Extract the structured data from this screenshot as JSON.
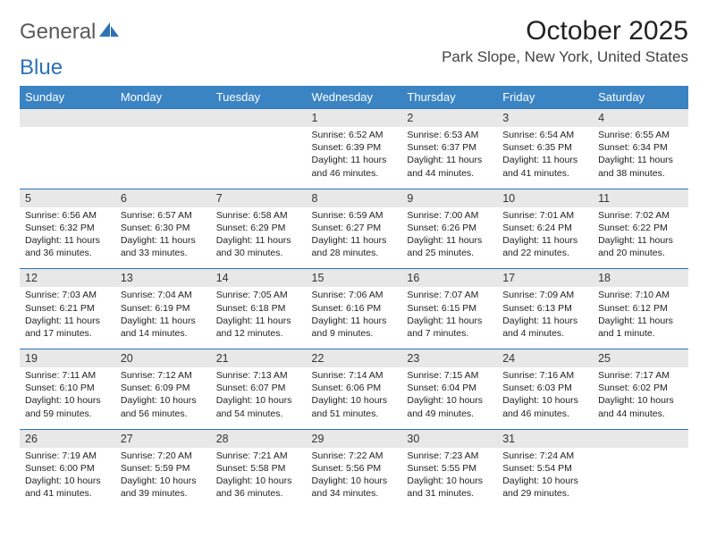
{
  "logo": {
    "text1": "General",
    "text2": "Blue"
  },
  "title": "October 2025",
  "location": "Park Slope, New York, United States",
  "colors": {
    "header_bg": "#3b84c4",
    "header_text": "#ffffff",
    "rule": "#2e72b6",
    "daynum_bg": "#e8e8e8"
  },
  "weekdays": [
    "Sunday",
    "Monday",
    "Tuesday",
    "Wednesday",
    "Thursday",
    "Friday",
    "Saturday"
  ],
  "weeks": [
    {
      "nums": [
        "",
        "",
        "",
        "1",
        "2",
        "3",
        "4"
      ],
      "details": [
        null,
        null,
        null,
        {
          "sr": "Sunrise: 6:52 AM",
          "ss": "Sunset: 6:39 PM",
          "d1": "Daylight: 11 hours",
          "d2": "and 46 minutes."
        },
        {
          "sr": "Sunrise: 6:53 AM",
          "ss": "Sunset: 6:37 PM",
          "d1": "Daylight: 11 hours",
          "d2": "and 44 minutes."
        },
        {
          "sr": "Sunrise: 6:54 AM",
          "ss": "Sunset: 6:35 PM",
          "d1": "Daylight: 11 hours",
          "d2": "and 41 minutes."
        },
        {
          "sr": "Sunrise: 6:55 AM",
          "ss": "Sunset: 6:34 PM",
          "d1": "Daylight: 11 hours",
          "d2": "and 38 minutes."
        }
      ]
    },
    {
      "nums": [
        "5",
        "6",
        "7",
        "8",
        "9",
        "10",
        "11"
      ],
      "details": [
        {
          "sr": "Sunrise: 6:56 AM",
          "ss": "Sunset: 6:32 PM",
          "d1": "Daylight: 11 hours",
          "d2": "and 36 minutes."
        },
        {
          "sr": "Sunrise: 6:57 AM",
          "ss": "Sunset: 6:30 PM",
          "d1": "Daylight: 11 hours",
          "d2": "and 33 minutes."
        },
        {
          "sr": "Sunrise: 6:58 AM",
          "ss": "Sunset: 6:29 PM",
          "d1": "Daylight: 11 hours",
          "d2": "and 30 minutes."
        },
        {
          "sr": "Sunrise: 6:59 AM",
          "ss": "Sunset: 6:27 PM",
          "d1": "Daylight: 11 hours",
          "d2": "and 28 minutes."
        },
        {
          "sr": "Sunrise: 7:00 AM",
          "ss": "Sunset: 6:26 PM",
          "d1": "Daylight: 11 hours",
          "d2": "and 25 minutes."
        },
        {
          "sr": "Sunrise: 7:01 AM",
          "ss": "Sunset: 6:24 PM",
          "d1": "Daylight: 11 hours",
          "d2": "and 22 minutes."
        },
        {
          "sr": "Sunrise: 7:02 AM",
          "ss": "Sunset: 6:22 PM",
          "d1": "Daylight: 11 hours",
          "d2": "and 20 minutes."
        }
      ]
    },
    {
      "nums": [
        "12",
        "13",
        "14",
        "15",
        "16",
        "17",
        "18"
      ],
      "details": [
        {
          "sr": "Sunrise: 7:03 AM",
          "ss": "Sunset: 6:21 PM",
          "d1": "Daylight: 11 hours",
          "d2": "and 17 minutes."
        },
        {
          "sr": "Sunrise: 7:04 AM",
          "ss": "Sunset: 6:19 PM",
          "d1": "Daylight: 11 hours",
          "d2": "and 14 minutes."
        },
        {
          "sr": "Sunrise: 7:05 AM",
          "ss": "Sunset: 6:18 PM",
          "d1": "Daylight: 11 hours",
          "d2": "and 12 minutes."
        },
        {
          "sr": "Sunrise: 7:06 AM",
          "ss": "Sunset: 6:16 PM",
          "d1": "Daylight: 11 hours",
          "d2": "and 9 minutes."
        },
        {
          "sr": "Sunrise: 7:07 AM",
          "ss": "Sunset: 6:15 PM",
          "d1": "Daylight: 11 hours",
          "d2": "and 7 minutes."
        },
        {
          "sr": "Sunrise: 7:09 AM",
          "ss": "Sunset: 6:13 PM",
          "d1": "Daylight: 11 hours",
          "d2": "and 4 minutes."
        },
        {
          "sr": "Sunrise: 7:10 AM",
          "ss": "Sunset: 6:12 PM",
          "d1": "Daylight: 11 hours",
          "d2": "and 1 minute."
        }
      ]
    },
    {
      "nums": [
        "19",
        "20",
        "21",
        "22",
        "23",
        "24",
        "25"
      ],
      "details": [
        {
          "sr": "Sunrise: 7:11 AM",
          "ss": "Sunset: 6:10 PM",
          "d1": "Daylight: 10 hours",
          "d2": "and 59 minutes."
        },
        {
          "sr": "Sunrise: 7:12 AM",
          "ss": "Sunset: 6:09 PM",
          "d1": "Daylight: 10 hours",
          "d2": "and 56 minutes."
        },
        {
          "sr": "Sunrise: 7:13 AM",
          "ss": "Sunset: 6:07 PM",
          "d1": "Daylight: 10 hours",
          "d2": "and 54 minutes."
        },
        {
          "sr": "Sunrise: 7:14 AM",
          "ss": "Sunset: 6:06 PM",
          "d1": "Daylight: 10 hours",
          "d2": "and 51 minutes."
        },
        {
          "sr": "Sunrise: 7:15 AM",
          "ss": "Sunset: 6:04 PM",
          "d1": "Daylight: 10 hours",
          "d2": "and 49 minutes."
        },
        {
          "sr": "Sunrise: 7:16 AM",
          "ss": "Sunset: 6:03 PM",
          "d1": "Daylight: 10 hours",
          "d2": "and 46 minutes."
        },
        {
          "sr": "Sunrise: 7:17 AM",
          "ss": "Sunset: 6:02 PM",
          "d1": "Daylight: 10 hours",
          "d2": "and 44 minutes."
        }
      ]
    },
    {
      "nums": [
        "26",
        "27",
        "28",
        "29",
        "30",
        "31",
        ""
      ],
      "details": [
        {
          "sr": "Sunrise: 7:19 AM",
          "ss": "Sunset: 6:00 PM",
          "d1": "Daylight: 10 hours",
          "d2": "and 41 minutes."
        },
        {
          "sr": "Sunrise: 7:20 AM",
          "ss": "Sunset: 5:59 PM",
          "d1": "Daylight: 10 hours",
          "d2": "and 39 minutes."
        },
        {
          "sr": "Sunrise: 7:21 AM",
          "ss": "Sunset: 5:58 PM",
          "d1": "Daylight: 10 hours",
          "d2": "and 36 minutes."
        },
        {
          "sr": "Sunrise: 7:22 AM",
          "ss": "Sunset: 5:56 PM",
          "d1": "Daylight: 10 hours",
          "d2": "and 34 minutes."
        },
        {
          "sr": "Sunrise: 7:23 AM",
          "ss": "Sunset: 5:55 PM",
          "d1": "Daylight: 10 hours",
          "d2": "and 31 minutes."
        },
        {
          "sr": "Sunrise: 7:24 AM",
          "ss": "Sunset: 5:54 PM",
          "d1": "Daylight: 10 hours",
          "d2": "and 29 minutes."
        },
        null
      ]
    }
  ]
}
